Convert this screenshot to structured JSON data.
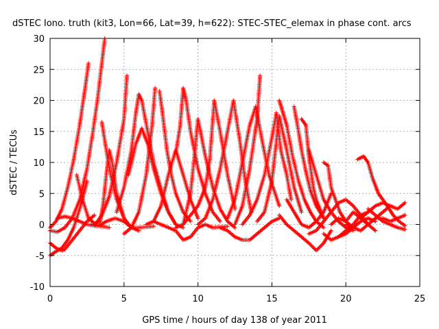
{
  "chart_data": {
    "type": "scatter",
    "title": "dSTEC Iono. truth (kit3, Lon=66, Lat=39, h=622): STEC-STEC_elemax in phase cont. arcs",
    "xlabel": "GPS time / hours of day 138 of year 2011",
    "ylabel": "dSTEC  / TECUs",
    "xlim": [
      0,
      25
    ],
    "ylim": [
      -10,
      30
    ],
    "xticks": [
      "0",
      "5",
      "10",
      "15",
      "20",
      "25"
    ],
    "yticks": [
      "-10",
      "-5",
      "0",
      "5",
      "10",
      "15",
      "20",
      "25",
      "30"
    ],
    "grid": true,
    "marker": "+",
    "color": "#ff0000",
    "series": [
      {
        "x": [
          0.0,
          0.4,
          0.8,
          1.2,
          1.6,
          2.0,
          2.4,
          2.6
        ],
        "y": [
          -0.5,
          0.5,
          2.5,
          6.0,
          10.5,
          16.0,
          22.5,
          26.0
        ]
      },
      {
        "x": [
          0.0,
          0.5,
          1.0,
          1.5,
          2.0,
          2.5,
          2.9,
          3.2,
          3.5,
          3.7
        ],
        "y": [
          -1.0,
          -1.2,
          -0.5,
          1.0,
          4.0,
          9.0,
          15.0,
          20.0,
          26.0,
          30.0
        ]
      },
      {
        "x": [
          0.0,
          0.3,
          0.8,
          1.2,
          1.6,
          2.0,
          2.5
        ],
        "y": [
          -5.0,
          -4.5,
          -3.8,
          -2.5,
          -0.5,
          2.5,
          7.0
        ]
      },
      {
        "x": [
          0.0,
          0.4,
          0.8,
          1.0,
          1.5,
          2.0,
          2.5,
          3.0
        ],
        "y": [
          -3.0,
          -3.8,
          -4.2,
          -4.0,
          -2.5,
          -1.0,
          0.5,
          1.5
        ]
      },
      {
        "x": [
          0.5,
          1.0,
          1.5,
          2.0,
          2.5,
          3.0,
          3.5,
          4.0
        ],
        "y": [
          1.0,
          1.3,
          1.0,
          0.5,
          0.0,
          -0.2,
          -0.3,
          -0.5
        ]
      },
      {
        "x": [
          2.8,
          3.3,
          3.8,
          4.4,
          5.0,
          5.5,
          6.0,
          7.0
        ],
        "y": [
          0.0,
          -0.2,
          0.5,
          1.0,
          0.5,
          -0.5,
          -0.5,
          -0.3
        ]
      },
      {
        "x": [
          1.8,
          2.2,
          2.6,
          3.0,
          3.4,
          3.6,
          3.8,
          4.0,
          4.2,
          4.5,
          5.0
        ],
        "y": [
          8.0,
          4.0,
          1.0,
          0.2,
          0.5,
          3.5,
          8.0,
          12.0,
          10.0,
          5.0,
          1.0
        ]
      },
      {
        "x": [
          3.5,
          3.8,
          4.1,
          4.5,
          5.0,
          5.5,
          6.0
        ],
        "y": [
          16.5,
          12.0,
          8.0,
          4.0,
          1.0,
          -0.5,
          -1.0
        ]
      },
      {
        "x": [
          3.0,
          3.5,
          4.0,
          4.5,
          5.0,
          5.2
        ],
        "y": [
          -0.2,
          1.5,
          4.5,
          10.0,
          17.0,
          24.0
        ]
      },
      {
        "x": [
          4.5,
          5.0,
          5.5,
          5.8,
          6.0,
          6.2,
          6.6,
          7.0,
          7.6,
          8.0,
          8.5
        ],
        "y": [
          2.0,
          6.0,
          12.0,
          18.0,
          21.0,
          20.0,
          15.0,
          10.0,
          5.0,
          2.0,
          0.0
        ]
      },
      {
        "x": [
          5.3,
          5.8,
          6.2,
          6.6,
          7.0,
          7.5,
          8.0,
          8.5,
          9.0
        ],
        "y": [
          8.0,
          13.0,
          15.5,
          13.0,
          9.0,
          5.0,
          2.0,
          0.0,
          -0.5
        ]
      },
      {
        "x": [
          5.0,
          5.5,
          6.0,
          6.5,
          6.9,
          7.1
        ],
        "y": [
          -1.5,
          -0.5,
          2.0,
          8.0,
          16.0,
          22.0
        ]
      },
      {
        "x": [
          7.4,
          7.6,
          7.9,
          8.2,
          8.5,
          9.0,
          9.5
        ],
        "y": [
          21.5,
          18.0,
          12.0,
          8.0,
          5.0,
          2.0,
          0.5
        ]
      },
      {
        "x": [
          6.5,
          7.0,
          7.5,
          8.0,
          8.5,
          9.0,
          9.5,
          10.0
        ],
        "y": [
          0.0,
          0.5,
          3.0,
          8.0,
          12.0,
          8.0,
          4.0,
          1.0
        ]
      },
      {
        "x": [
          7.0,
          7.5,
          8.0,
          8.5,
          9.0,
          9.5,
          10.0,
          10.5,
          11.0,
          12.0
        ],
        "y": [
          0.5,
          0.0,
          -0.5,
          -1.0,
          -2.5,
          -2.0,
          -0.5,
          0.0,
          -0.5,
          -0.3
        ]
      },
      {
        "x": [
          8.5,
          8.8,
          9.0,
          9.2,
          9.5,
          10.0,
          10.5,
          11.0,
          11.5
        ],
        "y": [
          11.5,
          16.0,
          22.0,
          20.0,
          15.0,
          9.0,
          5.0,
          2.0,
          0.5
        ]
      },
      {
        "x": [
          9.0,
          9.5,
          9.8,
          10.0,
          10.5,
          11.0,
          11.5,
          12.0,
          12.5
        ],
        "y": [
          0.0,
          5.0,
          12.0,
          17.0,
          11.0,
          6.0,
          2.5,
          0.5,
          -0.5
        ]
      },
      {
        "x": [
          8.5,
          9.0,
          9.5,
          10.0,
          10.5,
          10.8,
          11.1,
          11.5,
          12.0,
          12.5
        ],
        "y": [
          -0.5,
          0.0,
          1.5,
          3.0,
          6.0,
          10.5,
          20.0,
          15.0,
          8.0,
          2.5
        ]
      },
      {
        "x": [
          10.0,
          10.5,
          11.0,
          11.5,
          12.0,
          12.4,
          12.8,
          13.2,
          13.6
        ],
        "y": [
          0.0,
          1.0,
          4.0,
          9.0,
          15.0,
          20.0,
          14.0,
          7.0,
          2.0
        ]
      },
      {
        "x": [
          11.5,
          12.0,
          12.5,
          13.0,
          13.5,
          14.0,
          14.5,
          15.0,
          15.5
        ],
        "y": [
          -0.5,
          -1.0,
          -2.0,
          -2.5,
          -2.5,
          -1.5,
          -0.5,
          0.5,
          1.0
        ]
      },
      {
        "x": [
          12.5,
          13.0,
          13.5,
          14.0,
          14.2
        ],
        "y": [
          0.0,
          3.0,
          9.0,
          17.0,
          24.0
        ]
      },
      {
        "x": [
          12.0,
          12.5,
          13.0,
          13.5,
          13.9,
          14.3,
          14.8,
          15.5
        ],
        "y": [
          1.0,
          4.0,
          10.0,
          16.0,
          19.0,
          14.0,
          8.0,
          3.0
        ]
      },
      {
        "x": [
          13.0,
          13.5,
          14.0,
          14.5,
          15.0,
          15.3,
          15.6,
          16.0,
          16.3
        ],
        "y": [
          0.0,
          1.5,
          4.0,
          8.0,
          14.0,
          18.0,
          12.0,
          8.0,
          4.0
        ]
      },
      {
        "x": [
          14.0,
          14.5,
          15.0,
          15.5,
          16.0,
          16.5,
          17.0
        ],
        "y": [
          0.5,
          2.0,
          7.0,
          17.5,
          12.0,
          6.0,
          2.0
        ]
      },
      {
        "x": [
          15.5,
          16.0,
          16.4,
          16.8,
          17.2,
          17.6,
          18.0,
          18.5
        ],
        "y": [
          20.0,
          16.0,
          11.0,
          7.0,
          4.0,
          2.0,
          0.5,
          -0.5
        ]
      },
      {
        "x": [
          16.5,
          16.8,
          17.0,
          17.3,
          17.6,
          18.0,
          18.5
        ],
        "y": [
          19.0,
          15.0,
          12.0,
          8.5,
          5.5,
          3.0,
          1.0
        ]
      },
      {
        "x": [
          17.0,
          17.3,
          17.5,
          17.8,
          18.0,
          18.5
        ],
        "y": [
          17.0,
          16.0,
          11.0,
          6.0,
          4.0,
          1.0
        ]
      },
      {
        "x": [
          15.5,
          16.0,
          16.5,
          17.0,
          17.5,
          18.0,
          18.5,
          19.0
        ],
        "y": [
          1.5,
          0.0,
          -1.0,
          -2.0,
          -3.0,
          -4.2,
          -3.0,
          -1.0
        ]
      },
      {
        "x": [
          16.0,
          16.5,
          17.0,
          17.5,
          18.0,
          18.5,
          19.0
        ],
        "y": [
          4.0,
          2.0,
          0.0,
          -0.5,
          0.5,
          2.0,
          5.0
        ]
      },
      {
        "x": [
          17.5,
          18.0,
          18.5,
          19.0,
          19.5,
          20.0,
          20.5
        ],
        "y": [
          12.0,
          8.0,
          4.0,
          2.0,
          0.5,
          -0.5,
          -1.0
        ]
      },
      {
        "x": [
          18.5,
          18.8,
          19.0,
          19.3,
          19.6,
          20.0,
          20.5
        ],
        "y": [
          10.0,
          9.5,
          6.0,
          4.0,
          2.0,
          0.5,
          -0.5
        ]
      },
      {
        "x": [
          17.5,
          18.0,
          18.5,
          19.0,
          19.5,
          20.0,
          20.5,
          21.0,
          21.5
        ],
        "y": [
          -1.5,
          -1.0,
          0.5,
          2.0,
          3.5,
          4.0,
          3.0,
          1.5,
          0.0
        ]
      },
      {
        "x": [
          18.5,
          19.0,
          19.5,
          20.0,
          20.5,
          21.0,
          21.5
        ],
        "y": [
          -1.5,
          -2.5,
          -2.0,
          -1.0,
          0.0,
          1.5,
          2.0
        ]
      },
      {
        "x": [
          19.0,
          19.5,
          20.0,
          20.5,
          21.0,
          21.5,
          22.0
        ],
        "y": [
          0.0,
          1.0,
          0.5,
          2.0,
          1.0,
          0.0,
          -1.0
        ]
      },
      {
        "x": [
          20.0,
          20.5,
          21.0,
          21.5,
          22.0,
          22.5,
          23.0
        ],
        "y": [
          0.0,
          -0.5,
          -1.0,
          0.0,
          1.0,
          2.0,
          3.0
        ]
      },
      {
        "x": [
          20.8,
          21.2,
          21.5,
          21.8,
          22.2,
          22.8,
          23.2,
          23.6,
          24.0
        ],
        "y": [
          10.5,
          11.0,
          10.0,
          7.5,
          5.0,
          3.0,
          1.5,
          0.5,
          -0.2
        ]
      },
      {
        "x": [
          21.5,
          22.0,
          22.5,
          23.0,
          23.5,
          24.0
        ],
        "y": [
          2.5,
          1.5,
          0.5,
          0.0,
          -0.5,
          -0.8
        ]
      },
      {
        "x": [
          21.0,
          21.5,
          22.0,
          22.5,
          23.0,
          23.5,
          24.0
        ],
        "y": [
          1.0,
          2.0,
          3.0,
          3.5,
          3.0,
          2.5,
          3.5
        ]
      },
      {
        "x": [
          22.0,
          22.5,
          23.0,
          23.5,
          24.0
        ],
        "y": [
          1.0,
          1.0,
          0.5,
          1.0,
          1.5
        ]
      },
      {
        "x": [
          19.5,
          20.0,
          20.5,
          21.0,
          21.5,
          22.0
        ],
        "y": [
          -2.0,
          -1.5,
          -0.5,
          0.5,
          1.0,
          0.5
        ]
      }
    ]
  }
}
